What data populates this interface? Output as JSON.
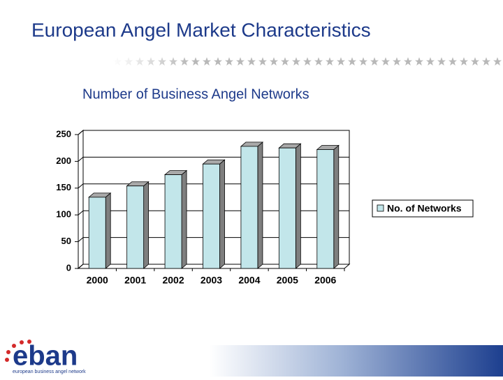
{
  "slide_title": "European Angel Market Characteristics",
  "chart_data": {
    "type": "bar3d",
    "title": "Number of Business Angel Networks",
    "categories": [
      "2000",
      "2001",
      "2002",
      "2003",
      "2004",
      "2005",
      "2006"
    ],
    "series": [
      {
        "name": "No. of Networks",
        "color": "#c2e6ea",
        "values": [
          133,
          154,
          175,
          195,
          228,
          225,
          222
        ]
      }
    ],
    "ylim": [
      0,
      250
    ],
    "yticks": [
      0,
      50,
      100,
      150,
      200,
      250
    ],
    "grid": true,
    "legend": "right"
  },
  "logo": {
    "name": "eban",
    "tagline": "european business angel network"
  }
}
